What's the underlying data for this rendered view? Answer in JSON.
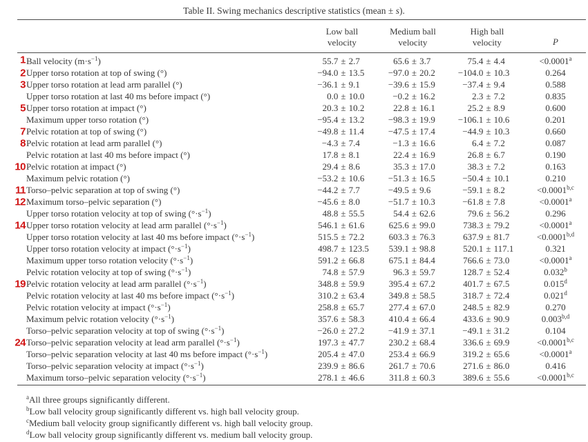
{
  "title": {
    "prefix": "Table II. Swing mechanics descriptive statistics (mean ± ",
    "italic": "s",
    "suffix": ")."
  },
  "table": {
    "columns": [
      {
        "line1": "Low ball",
        "line2": "velocity"
      },
      {
        "line1": "Medium ball",
        "line2": "velocity"
      },
      {
        "line1": "High ball",
        "line2": "velocity"
      },
      {
        "line1": "P",
        "line2": ""
      }
    ],
    "rows": [
      {
        "mark": "1",
        "label": "Ball velocity (m·s⁻¹)",
        "low": "55.7 ± 2.7",
        "medium": "65.6 ± 3.7",
        "high": "75.4 ± 4.4",
        "p": "<0.0001",
        "p_sup": "a"
      },
      {
        "mark": "2",
        "label": "Upper torso rotation at top of swing (°)",
        "low": "−94.0 ± 13.5",
        "medium": "−97.0 ± 20.2",
        "high": "−104.0 ± 10.3",
        "p": "0.264",
        "p_sup": ""
      },
      {
        "mark": "3",
        "label": "Upper torso rotation at lead arm parallel (°)",
        "low": "−36.1 ± 9.1",
        "medium": "−39.6 ± 15.9",
        "high": "−37.4 ± 9.4",
        "p": "0.588",
        "p_sup": ""
      },
      {
        "mark": "",
        "label": "Upper torso rotation at last 40 ms before impact (°)",
        "low": "0.0 ± 10.0",
        "medium": "−0.2 ± 16.2",
        "high": "2.3 ± 7.2",
        "p": "0.835",
        "p_sup": ""
      },
      {
        "mark": "5",
        "label": "Upper torso rotation at impact (°)",
        "low": "20.3 ± 10.2",
        "medium": "22.8 ± 16.1",
        "high": "25.2 ± 8.9",
        "p": "0.600",
        "p_sup": ""
      },
      {
        "mark": "",
        "label": "Maximum upper torso rotation (°)",
        "low": "−95.4 ± 13.2",
        "medium": "−98.3 ± 19.9",
        "high": "−106.1 ± 10.6",
        "p": "0.201",
        "p_sup": ""
      },
      {
        "mark": "7",
        "label": "Pelvic rotation at top of swing (°)",
        "low": "−49.8 ± 11.4",
        "medium": "−47.5 ± 17.4",
        "high": "−44.9 ± 10.3",
        "p": "0.660",
        "p_sup": ""
      },
      {
        "mark": "8",
        "label": "Pelvic rotation at lead arm parallel (°)",
        "low": "−4.3 ± 7.4",
        "medium": "−1.3 ± 16.6",
        "high": "6.4 ± 7.2",
        "p": "0.087",
        "p_sup": ""
      },
      {
        "mark": "",
        "label": "Pelvic rotation at last 40 ms before impact (°)",
        "low": "17.8 ± 8.1",
        "medium": "22.4 ± 16.9",
        "high": "26.8 ± 6.7",
        "p": "0.190",
        "p_sup": ""
      },
      {
        "mark": "10",
        "label": "Pelvic rotation at impact (°)",
        "low": "29.4 ± 8.6",
        "medium": "35.3 ± 17.0",
        "high": "38.3 ± 7.2",
        "p": "0.163",
        "p_sup": ""
      },
      {
        "mark": "",
        "label": "Maximum pelvic rotation (°)",
        "low": "−53.2 ± 10.6",
        "medium": "−51.3 ± 16.5",
        "high": "−50.4 ± 10.1",
        "p": "0.210",
        "p_sup": ""
      },
      {
        "mark": "11",
        "label": "Torso–pelvic separation at top of swing (°)",
        "low": "−44.2 ± 7.7",
        "medium": "−49.5 ± 9.6",
        "high": "−59.1 ± 8.2",
        "p": "<0.0001",
        "p_sup": "b,c"
      },
      {
        "mark": "12",
        "label": "Maximum torso–pelvic separation (°)",
        "low": "−45.6 ± 8.0",
        "medium": "−51.7 ± 10.3",
        "high": "−61.8 ± 7.8",
        "p": "<0.0001",
        "p_sup": "a"
      },
      {
        "mark": "",
        "label": "Upper torso rotation velocity at top of swing (°·s⁻¹)",
        "low": "48.8 ± 55.5",
        "medium": "54.4 ± 62.6",
        "high": "79.6 ± 56.2",
        "p": "0.296",
        "p_sup": ""
      },
      {
        "mark": "14",
        "label": "Upper torso rotation velocity at lead arm parallel (°·s⁻¹)",
        "low": "546.1 ± 61.6",
        "medium": "625.6 ± 99.0",
        "high": "738.3 ± 79.2",
        "p": "<0.0001",
        "p_sup": "a"
      },
      {
        "mark": "",
        "label": "Upper torso rotation velocity at last 40 ms before impact (°·s⁻¹)",
        "low": "515.5 ± 72.2",
        "medium": "603.3 ± 76.3",
        "high": "637.9 ± 81.7",
        "p": "<0.0001",
        "p_sup": "b,d"
      },
      {
        "mark": "",
        "label": "Upper torso rotation velocity at impact (°·s⁻¹)",
        "low": "498.7 ± 123.5",
        "medium": "539.1 ± 98.8",
        "high": "520.1 ± 117.1",
        "p": "0.321",
        "p_sup": ""
      },
      {
        "mark": "",
        "label": "Maximum upper torso rotation velocity (°·s⁻¹)",
        "low": "591.2 ± 66.8",
        "medium": "675.1 ± 84.4",
        "high": "766.6 ± 73.0",
        "p": "<0.0001",
        "p_sup": "a"
      },
      {
        "mark": "",
        "label": "Pelvic rotation velocity at top of swing (°·s⁻¹)",
        "low": "74.8 ± 57.9",
        "medium": "96.3 ± 59.7",
        "high": "128.7 ± 52.4",
        "p": "0.032",
        "p_sup": "b"
      },
      {
        "mark": "19",
        "label": "Pelvic rotation velocity at lead arm parallel (°·s⁻¹)",
        "low": "348.8 ± 59.9",
        "medium": "395.4 ± 67.2",
        "high": "401.7 ± 67.5",
        "p": "0.015",
        "p_sup": "d"
      },
      {
        "mark": "",
        "label": "Pelvic rotation velocity at last 40 ms before impact (°·s⁻¹)",
        "low": "310.2 ± 63.4",
        "medium": "349.8 ± 58.5",
        "high": "318.7 ± 72.4",
        "p": "0.021",
        "p_sup": "d"
      },
      {
        "mark": "",
        "label": "Pelvic rotation velocity at impact (°·s⁻¹)",
        "low": "258.8 ± 65.7",
        "medium": "277.4 ± 67.0",
        "high": "248.5 ± 82.9",
        "p": "0.270",
        "p_sup": ""
      },
      {
        "mark": "",
        "label": "Maximum pelvic rotation velocity (°·s⁻¹)",
        "low": "357.6 ± 58.3",
        "medium": "410.4 ± 66.4",
        "high": "433.6 ± 90.9",
        "p": "0.003",
        "p_sup": "b,d"
      },
      {
        "mark": "",
        "label": "Torso–pelvic separation velocity at top of swing (°·s⁻¹)",
        "low": "−26.0 ± 27.2",
        "medium": "−41.9 ± 37.1",
        "high": "−49.1 ± 31.2",
        "p": "0.104",
        "p_sup": ""
      },
      {
        "mark": "24",
        "label": "Torso–pelvic separation velocity at lead arm parallel (°·s⁻¹)",
        "low": "197.3 ± 47.7",
        "medium": "230.2 ± 68.4",
        "high": "336.6 ± 69.9",
        "p": "<0.0001",
        "p_sup": "b,c"
      },
      {
        "mark": "",
        "label": "Torso–pelvic separation velocity at last 40 ms before impact (°·s⁻¹)",
        "low": "205.4 ± 47.0",
        "medium": "253.4 ± 66.9",
        "high": "319.2 ± 65.6",
        "p": "<0.0001",
        "p_sup": "a"
      },
      {
        "mark": "",
        "label": "Torso–pelvic separation velocity at impact (°·s⁻¹)",
        "low": "239.9 ± 86.6",
        "medium": "261.7 ± 70.6",
        "high": "271.6 ± 86.0",
        "p": "0.416",
        "p_sup": ""
      },
      {
        "mark": "",
        "label": "Maximum torso–pelvic separation velocity (°·s⁻¹)",
        "low": "278.1 ± 46.6",
        "medium": "311.8 ± 60.3",
        "high": "389.6 ± 55.6",
        "p": "<0.0001",
        "p_sup": "b,c"
      }
    ]
  },
  "footnotes": [
    {
      "sup": "a",
      "text": "All three groups significantly different."
    },
    {
      "sup": "b",
      "text": "Low ball velocity group significantly different vs. high ball velocity group."
    },
    {
      "sup": "c",
      "text": "Medium ball velocity group significantly different vs. high ball velocity group."
    },
    {
      "sup": "d",
      "text": "Low ball velocity group significantly different vs. medium ball velocity group."
    }
  ],
  "colors": {
    "mark_red": "#d01414",
    "rule": "#4a4a4a",
    "text": "#383838"
  }
}
